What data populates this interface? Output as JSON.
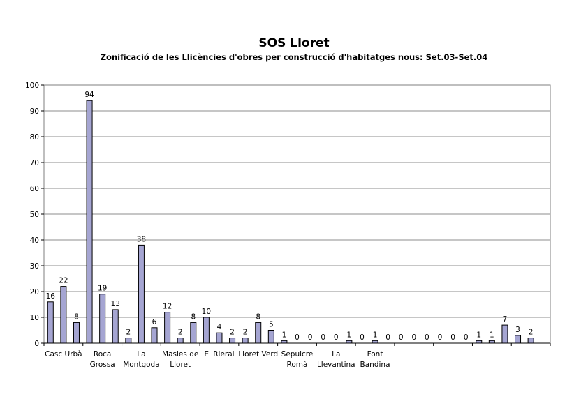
{
  "chart_data": {
    "type": "bar",
    "title": "SOS Lloret",
    "subtitle": "Zonificació de les Llicències d'obres per construcció d'habitatges nous: Set.03-Set.04",
    "xlabel": "",
    "ylabel": "",
    "ylim": [
      0,
      100
    ],
    "yticks": [
      0,
      10,
      20,
      30,
      40,
      50,
      60,
      70,
      80,
      90,
      100
    ],
    "grid": true,
    "legend": "none",
    "bar_color": "#a5a5d2",
    "groups": [
      {
        "label": [
          "Casc Urbà"
        ],
        "values": [
          16,
          22,
          8
        ]
      },
      {
        "label": [
          "Roca",
          "Grossa"
        ],
        "values": [
          94,
          19,
          13
        ]
      },
      {
        "label": [
          "La",
          "Montgoda"
        ],
        "values": [
          2,
          38,
          6
        ]
      },
      {
        "label": [
          "Masies de",
          "Lloret"
        ],
        "values": [
          12,
          2,
          8
        ]
      },
      {
        "label": [
          "El Rieral"
        ],
        "values": [
          10,
          4,
          2
        ]
      },
      {
        "label": [
          "Lloret Verd"
        ],
        "values": [
          2,
          8,
          5
        ]
      },
      {
        "label": [
          "Sepulcre",
          "Romà"
        ],
        "values": [
          1,
          0,
          0
        ]
      },
      {
        "label": [
          "La",
          "Llevantina"
        ],
        "values": [
          0,
          0,
          1
        ]
      },
      {
        "label": [
          "Font",
          "Bandina"
        ],
        "values": [
          0,
          1,
          0
        ]
      },
      {
        "label": [
          ""
        ],
        "values": [
          0,
          0,
          0
        ]
      },
      {
        "label": [
          ""
        ],
        "values": [
          0,
          0,
          0
        ]
      },
      {
        "label": [
          ""
        ],
        "values": [
          1,
          1,
          7
        ]
      },
      {
        "label": [
          ""
        ],
        "values": [
          3,
          2
        ]
      }
    ]
  }
}
